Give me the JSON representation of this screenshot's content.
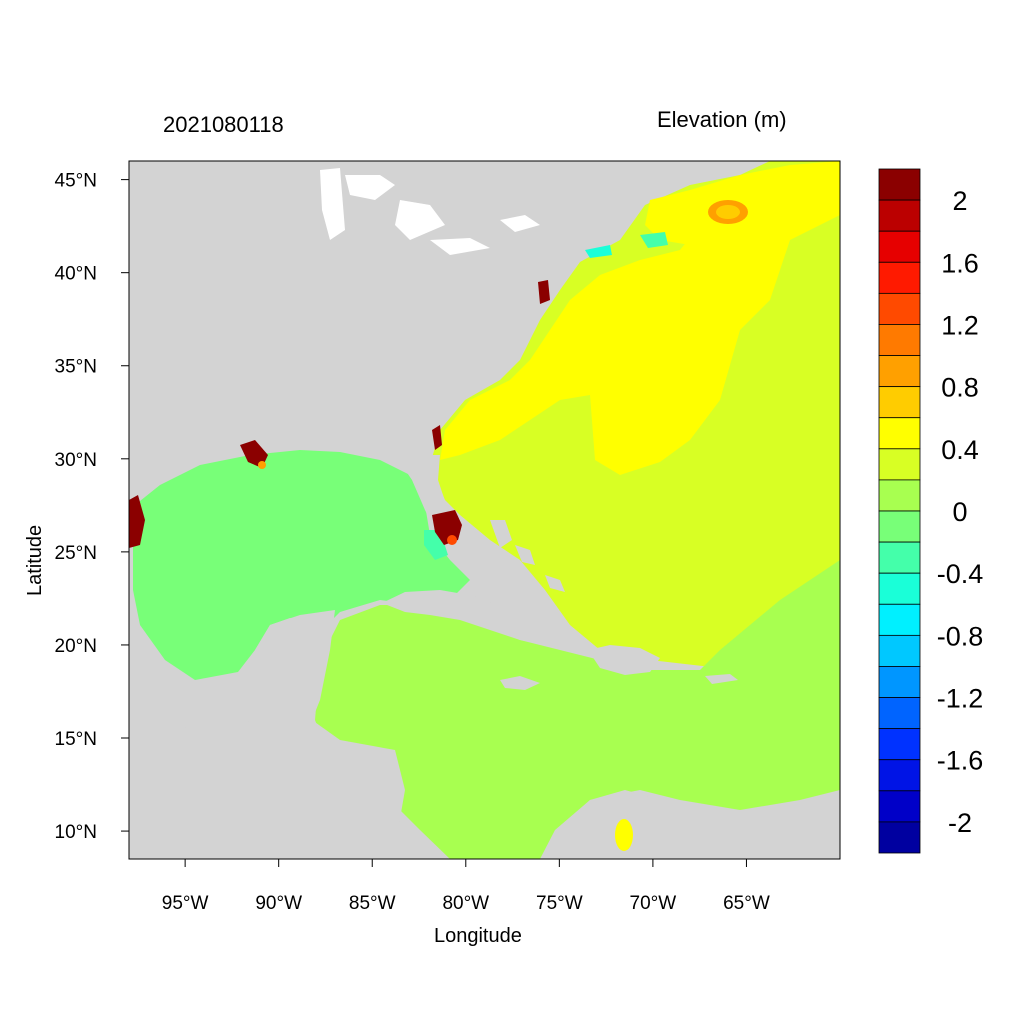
{
  "header": {
    "timestamp": "2021080118",
    "field_label": "Elevation (m)"
  },
  "axes": {
    "xlabel": "Longitude",
    "ylabel": "Latitude",
    "x_ticks": [
      "95°W",
      "90°W",
      "85°W",
      "80°W",
      "75°W",
      "70°W",
      "65°W"
    ],
    "x_tick_values": [
      -95,
      -90,
      -85,
      -80,
      -75,
      -70,
      -65
    ],
    "y_ticks": [
      "10°N",
      "15°N",
      "20°N",
      "25°N",
      "30°N",
      "35°N",
      "40°N",
      "45°N"
    ],
    "y_tick_values": [
      10,
      15,
      20,
      25,
      30,
      35,
      40,
      45
    ],
    "lon_range": [
      -98,
      -60
    ],
    "lat_range": [
      8.5,
      46
    ]
  },
  "colorbar": {
    "labels": [
      "2",
      "1.6",
      "1.2",
      "0.8",
      "0.4",
      "0",
      "-0.4",
      "-0.8",
      "-1.2",
      "-1.6",
      "-2"
    ],
    "colors_top_to_bottom": [
      "#8b0000",
      "#bb0000",
      "#e60000",
      "#ff1a00",
      "#ff4a00",
      "#ff7a00",
      "#ffa000",
      "#ffcc00",
      "#ffff00",
      "#d8ff24",
      "#a8ff50",
      "#78ff78",
      "#44ffaa",
      "#1affd8",
      "#00f0ff",
      "#00c8ff",
      "#0096ff",
      "#0064ff",
      "#0032ff",
      "#0014e6",
      "#0000c8",
      "#0000a0"
    ]
  },
  "colors": {
    "land": "#d3d3d3",
    "gulf": "#78ff78",
    "caribbean": "#a8ff50",
    "atlantic": "#d8ff24",
    "gulf_stream": "#ffff00",
    "surge_high": "#8b0000"
  }
}
